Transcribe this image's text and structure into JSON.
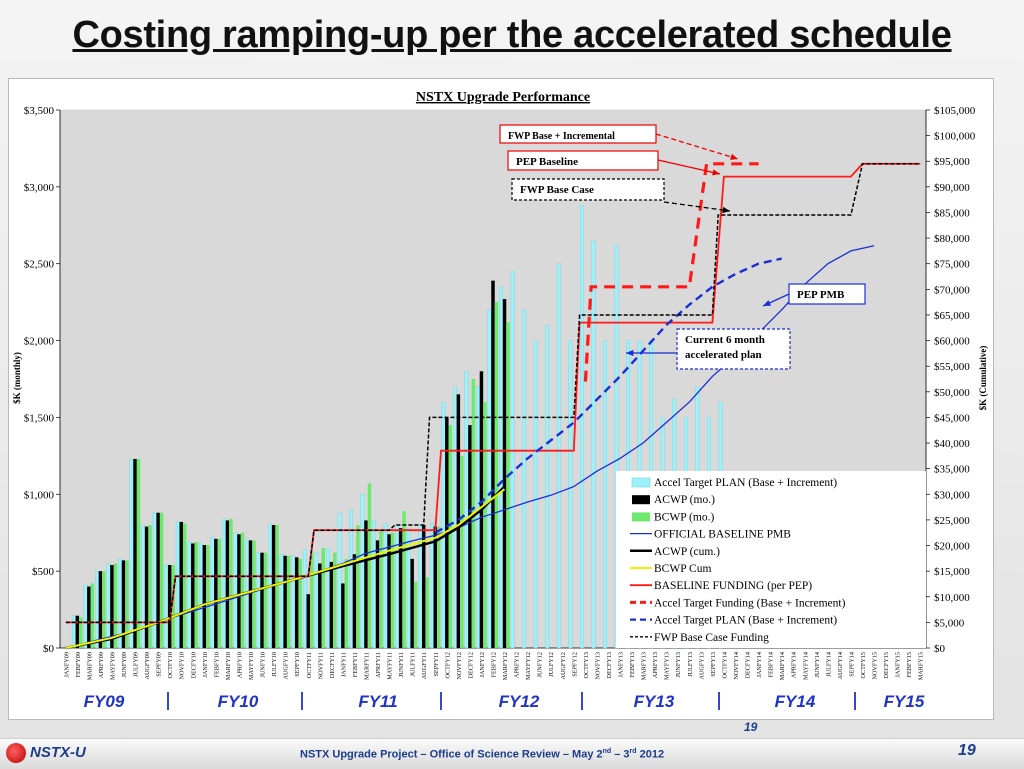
{
  "slide": {
    "title": "Costing ramping-up per the accelerated schedule",
    "footer_logo": "NSTX-U",
    "footer_text_prefix": "NSTX Upgrade Project – Office of Science Review – May  2",
    "footer_sup1": "nd",
    "footer_text_mid": " – 3",
    "footer_sup2": "rd",
    "footer_text_suffix": "  2012",
    "page_number": "19",
    "page_number_ghost": "19"
  },
  "colors": {
    "accel_plan_bar": "#9ef0fb",
    "acwp_bar": "#000000",
    "bcwp_bar": "#6fe86f",
    "official_pmb": "#1a2fd6",
    "acwp_cum": "#000000",
    "bcwp_cum": "#f2f200",
    "baseline_funding": "#ff1a1a",
    "accel_funding": "#ff1a1a",
    "accel_plan_cum": "#1a2fd6",
    "fwp_base_case": "#000000",
    "fy_labels": "#1f33c6"
  },
  "chart_data": {
    "type": "bar",
    "title": "NSTX Upgrade Performance",
    "ylabel": "$K (monthly)",
    "y2label": "$K (Cumulative)",
    "ylim": [
      0,
      3500
    ],
    "y2lim": [
      0,
      105000
    ],
    "yticks": [
      "$0",
      "$500",
      "$1,000",
      "$1,500",
      "$2,000",
      "$2,500",
      "$3,000",
      "$3,500"
    ],
    "y2ticks": [
      "$0",
      "$5,000",
      "$10,000",
      "$15,000",
      "$20,000",
      "$25,000",
      "$30,000",
      "$35,000",
      "$40,000",
      "$45,000",
      "$50,000",
      "$55,000",
      "$60,000",
      "$65,000",
      "$70,000",
      "$75,000",
      "$80,000",
      "$85,000",
      "$90,000",
      "$95,000",
      "$100,000",
      "$105,000"
    ],
    "grid": false,
    "legend_position": "lower-right",
    "categories": [
      "JANFY09",
      "FEBFY09",
      "MARFY09",
      "APRFY09",
      "MAYFY09",
      "JUNFY09",
      "JULFY09",
      "AUGFY09",
      "SEPFY09",
      "OCTFY10",
      "NOVFY10",
      "DECFY10",
      "JANFY10",
      "FEBFY10",
      "MARFY10",
      "APRFY10",
      "MAYFY10",
      "JUNFY10",
      "JULFY10",
      "AUGFY10",
      "SEPFY10",
      "OCTFY11",
      "NOVFY11",
      "DECFY11",
      "JANFY11",
      "FEBFY11",
      "MARFY11",
      "APRFY11",
      "MAYFY11",
      "JUNFY11",
      "JULFY11",
      "AUGFY11",
      "SEPFY11",
      "OCTFY12",
      "NOVFY12",
      "DECFY12",
      "JANFY12",
      "FEBFY12",
      "MARFY12",
      "APRFY12",
      "MAYFY12",
      "JUNFY12",
      "JULFY12",
      "AUGFY12",
      "SEPFY12",
      "OCTFY13",
      "NOVFY13",
      "DECFY13",
      "JANFY13",
      "FEBFY13",
      "MARFY13",
      "APRFY13",
      "MAYFY13",
      "JUNFY13",
      "JULFY13",
      "AUGFY13",
      "SEPFY13",
      "OCTFY14",
      "NOVFY14",
      "DECFY14",
      "JANFY14",
      "FEBFY14",
      "MARFY14",
      "APRFY14",
      "MAYFY14",
      "JUNFY14",
      "JULFY14",
      "AUGFY14",
      "SEPFY14",
      "OCTFY15",
      "NOVFY15",
      "DECFY15",
      "JANFY15",
      "FEBFY15",
      "MARFY15"
    ],
    "fy_labels": [
      "FY09",
      "FY10",
      "FY11",
      "FY12",
      "FY13",
      "FY14",
      "FY15"
    ],
    "series": [
      {
        "name": "Accel Target PLAN (Base + Increment)",
        "kind": "bar",
        "axis": "left",
        "values": [
          0,
          210,
          410,
          500,
          550,
          580,
          1230,
          800,
          880,
          540,
          820,
          690,
          680,
          720,
          840,
          750,
          710,
          620,
          810,
          610,
          600,
          640,
          620,
          650,
          880,
          900,
          1000,
          830,
          810,
          800,
          780,
          800,
          810,
          1600,
          1700,
          1800,
          1700,
          2200,
          2350,
          2450,
          2200,
          2000,
          2100,
          2500,
          2000,
          2880,
          2650,
          2000,
          2620,
          2000,
          2000,
          2000,
          1500,
          1620,
          1500,
          1700,
          1500,
          1600,
          0,
          0,
          0,
          0,
          0,
          0,
          0,
          0,
          0,
          0,
          0,
          0,
          0,
          0,
          0,
          0,
          0
        ]
      },
      {
        "name": "ACWP (mo.)",
        "kind": "bar",
        "axis": "left",
        "values": [
          0,
          210,
          400,
          500,
          540,
          570,
          1230,
          790,
          880,
          540,
          820,
          680,
          670,
          710,
          830,
          740,
          700,
          620,
          800,
          600,
          590,
          350,
          550,
          560,
          420,
          610,
          830,
          700,
          740,
          780,
          580,
          800,
          790,
          1500,
          1650,
          1450,
          1800,
          2390,
          2270,
          0,
          0,
          0,
          0,
          0,
          0,
          0,
          0,
          0,
          0,
          0,
          0,
          0,
          0,
          0,
          0,
          0,
          0,
          0,
          0,
          0,
          0,
          0,
          0,
          0,
          0,
          0,
          0,
          0,
          0,
          0,
          0,
          0,
          0,
          0,
          0
        ]
      },
      {
        "name": "BCWP (mo.)",
        "kind": "bar",
        "axis": "left",
        "values": [
          0,
          200,
          420,
          500,
          550,
          570,
          1230,
          800,
          880,
          540,
          810,
          690,
          670,
          710,
          840,
          750,
          700,
          620,
          800,
          600,
          580,
          620,
          650,
          620,
          580,
          800,
          1070,
          760,
          750,
          890,
          430,
          460,
          790,
          1450,
          1250,
          1750,
          1600,
          2250,
          2120,
          0,
          0,
          0,
          0,
          0,
          0,
          0,
          0,
          0,
          0,
          0,
          0,
          0,
          0,
          0,
          0,
          0,
          0,
          0,
          0,
          0,
          0,
          0,
          0,
          0,
          0,
          0,
          0,
          0,
          0,
          0,
          0,
          0,
          0,
          0,
          0
        ]
      },
      {
        "name": "OFFICIAL BASELINE PMB",
        "kind": "line",
        "axis": "right",
        "dash": "solid",
        "points": [
          [
            0,
            0
          ],
          [
            6,
            3400
          ],
          [
            8,
            5200
          ],
          [
            10,
            6500
          ],
          [
            14,
            9300
          ],
          [
            18,
            12200
          ],
          [
            20,
            13500
          ],
          [
            22,
            15000
          ],
          [
            24,
            16500
          ],
          [
            26,
            18500
          ],
          [
            28,
            19700
          ],
          [
            30,
            20900
          ],
          [
            32,
            22000
          ],
          [
            34,
            23500
          ],
          [
            36,
            25500
          ],
          [
            38,
            27000
          ],
          [
            40,
            28500
          ],
          [
            42,
            29800
          ],
          [
            44,
            31500
          ],
          [
            46,
            34500
          ],
          [
            48,
            37000
          ],
          [
            50,
            40000
          ],
          [
            52,
            44000
          ],
          [
            54,
            48000
          ],
          [
            56,
            53000
          ],
          [
            58,
            57000
          ],
          [
            60,
            61500
          ],
          [
            62,
            66000
          ],
          [
            64,
            71000
          ],
          [
            66,
            75000
          ],
          [
            68,
            77500
          ],
          [
            70,
            78500
          ]
        ]
      },
      {
        "name": "ACWP (cum.)",
        "kind": "line",
        "axis": "right",
        "dash": "solid",
        "points": [
          [
            0,
            0
          ],
          [
            4,
            1800
          ],
          [
            8,
            5000
          ],
          [
            12,
            8500
          ],
          [
            16,
            11000
          ],
          [
            20,
            13500
          ],
          [
            24,
            16000
          ],
          [
            28,
            18300
          ],
          [
            32,
            20800
          ],
          [
            34,
            23500
          ],
          [
            36,
            27000
          ],
          [
            38,
            31500
          ]
        ]
      },
      {
        "name": "BCWP Cum",
        "kind": "line",
        "axis": "right",
        "dash": "solid",
        "points": [
          [
            0,
            0
          ],
          [
            4,
            2000
          ],
          [
            8,
            5000
          ],
          [
            12,
            8500
          ],
          [
            16,
            11000
          ],
          [
            20,
            13500
          ],
          [
            24,
            16300
          ],
          [
            28,
            19000
          ],
          [
            32,
            21500
          ],
          [
            34,
            24000
          ],
          [
            36,
            27500
          ],
          [
            38,
            31000
          ]
        ]
      },
      {
        "name": "BASELINE FUNDING (per PEP)",
        "kind": "line",
        "axis": "right",
        "dash": "solid",
        "points": [
          [
            0,
            5000
          ],
          [
            9,
            5000
          ],
          [
            9.5,
            14000
          ],
          [
            21,
            14000
          ],
          [
            21.5,
            23000
          ],
          [
            32,
            23000
          ],
          [
            32.5,
            38500
          ],
          [
            44,
            38500
          ],
          [
            44.5,
            63500
          ],
          [
            56,
            63500
          ],
          [
            57,
            92000
          ],
          [
            68,
            92000
          ],
          [
            69,
            94500
          ],
          [
            74,
            94500
          ]
        ]
      },
      {
        "name": "Accel Target Funding (Base + Increment)",
        "kind": "line",
        "axis": "right",
        "dash": "long",
        "points": [
          [
            45,
            52000
          ],
          [
            45.5,
            70500
          ],
          [
            54,
            70500
          ],
          [
            55.5,
            94500
          ],
          [
            60,
            94500
          ]
        ]
      },
      {
        "name": "Accel Target PLAN (Base + Increment)",
        "kind": "line",
        "axis": "right",
        "dash": "medium",
        "points": [
          [
            32,
            22500
          ],
          [
            34,
            25000
          ],
          [
            36,
            28500
          ],
          [
            38,
            33000
          ],
          [
            40,
            37000
          ],
          [
            42,
            40500
          ],
          [
            44,
            44000
          ],
          [
            46,
            48500
          ],
          [
            48,
            53000
          ],
          [
            50,
            58000
          ],
          [
            52,
            63000
          ],
          [
            54,
            67000
          ],
          [
            56,
            70500
          ],
          [
            58,
            73000
          ],
          [
            60,
            75000
          ],
          [
            62,
            76000
          ]
        ]
      },
      {
        "name": "FWP Base Case Funding",
        "kind": "line",
        "axis": "right",
        "dash": "short",
        "points": [
          [
            0,
            5000
          ],
          [
            9,
            5000
          ],
          [
            9.5,
            14000
          ],
          [
            21,
            14000
          ],
          [
            21.5,
            23000
          ],
          [
            28,
            23000
          ],
          [
            28.5,
            24000
          ],
          [
            31,
            24000
          ],
          [
            31.5,
            45000
          ],
          [
            44,
            45000
          ],
          [
            44.5,
            65000
          ],
          [
            56,
            65000
          ],
          [
            56.5,
            84500
          ],
          [
            68,
            84500
          ],
          [
            69,
            94500
          ],
          [
            74,
            94500
          ]
        ]
      }
    ],
    "annotations": [
      {
        "text": "FWP Base  + Incremental",
        "border": "red-solid"
      },
      {
        "text": "PEP Baseline",
        "border": "red-solid"
      },
      {
        "text": "FWP Base Case",
        "border": "black-dashed"
      },
      {
        "text": "PEP PMB",
        "border": "blue-solid"
      },
      {
        "text": "Current 6 month",
        "text2": "accelerated plan",
        "border": "blue-dashed"
      }
    ]
  }
}
